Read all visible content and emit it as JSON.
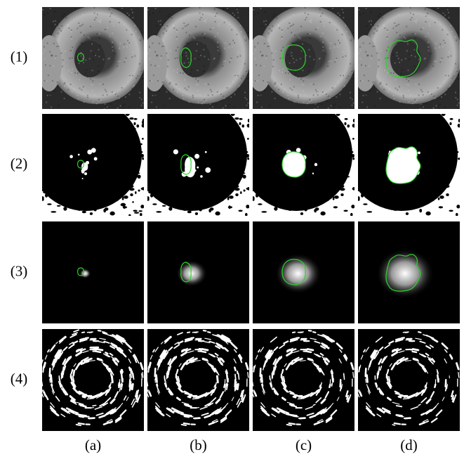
{
  "row_labels": [
    "(1)",
    "(2)",
    "(3)",
    "(4)"
  ],
  "column_labels": [
    "(a)",
    "(b)",
    "(c)",
    "(d)"
  ]
}
